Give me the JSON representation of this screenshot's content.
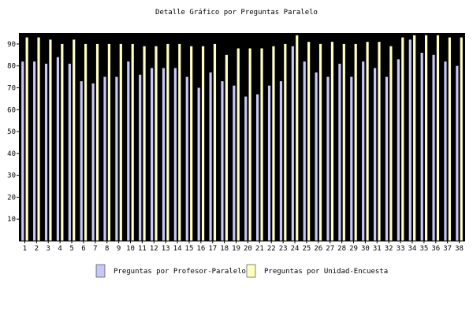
{
  "chart_data": {
    "type": "bar",
    "title": "Detalle Gráfico por Preguntas Paralelo",
    "xlabel": "",
    "ylabel": "",
    "ylim": [
      0,
      95
    ],
    "yticks": [
      10,
      20,
      30,
      40,
      50,
      60,
      70,
      80,
      90
    ],
    "grid": false,
    "legend_position": "bottom",
    "categories": [
      "1",
      "2",
      "3",
      "4",
      "5",
      "6",
      "7",
      "8",
      "9",
      "10",
      "11",
      "12",
      "13",
      "14",
      "15",
      "16",
      "17",
      "18",
      "19",
      "20",
      "21",
      "22",
      "23",
      "24",
      "25",
      "26",
      "27",
      "28",
      "29",
      "30",
      "31",
      "32",
      "33",
      "34",
      "35",
      "36",
      "37",
      "38"
    ],
    "series": [
      {
        "name": "Preguntas por Profesor-Paralelo",
        "color": "#c8c8f8",
        "values": [
          82,
          82,
          81,
          84,
          81,
          73,
          72,
          75,
          75,
          82,
          76,
          79,
          79,
          79,
          75,
          70,
          77,
          73,
          71,
          66,
          67,
          71,
          73,
          89,
          82,
          77,
          75,
          81,
          75,
          82,
          79,
          75,
          83,
          92,
          86,
          85,
          82,
          80
        ]
      },
      {
        "name": "Preguntas por Unidad-Encuesta",
        "color": "#ffffc0",
        "values": [
          93,
          93,
          92,
          90,
          92,
          90,
          90,
          90,
          90,
          90,
          89,
          89,
          90,
          90,
          89,
          89,
          90,
          85,
          88,
          88,
          88,
          89,
          90,
          94,
          91,
          90,
          91,
          90,
          90,
          91,
          91,
          89,
          93,
          94,
          94,
          94,
          93,
          93
        ]
      }
    ]
  },
  "colors": {
    "plot_background": "#000000",
    "page_background": "#ffffff"
  }
}
